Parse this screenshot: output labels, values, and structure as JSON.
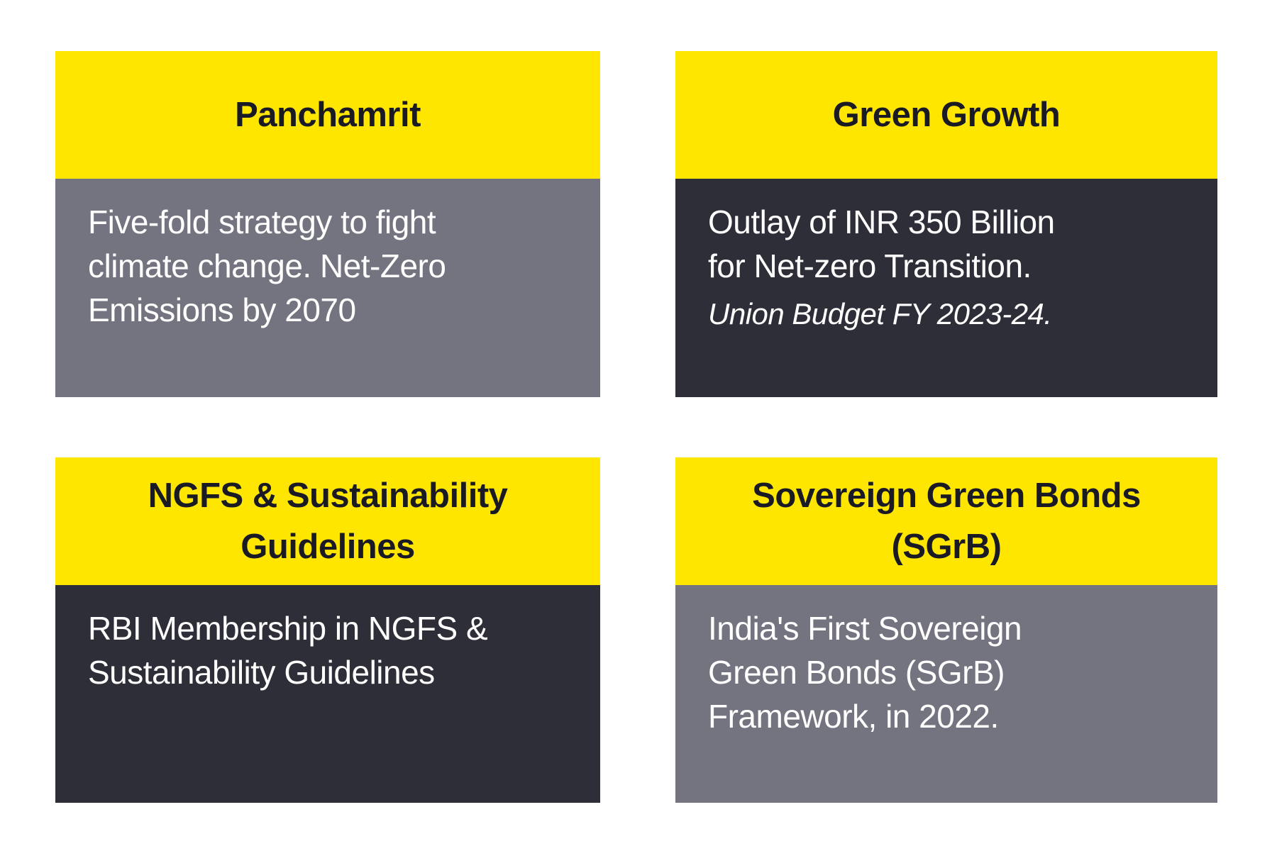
{
  "colors": {
    "header_background": "#ffe600",
    "header_text": "#1a1a24",
    "body_gray": "#747480",
    "body_dark": "#2e2e38",
    "body_text": "#ffffff",
    "page_background": "#ffffff"
  },
  "cards": [
    {
      "title": "Panchamrit",
      "body_variant": "gray",
      "body_text": "Five-fold strategy to fight\nclimate change. Net-Zero\nEmissions by 2070",
      "note": ""
    },
    {
      "title": "Green Growth",
      "body_variant": "dark",
      "body_text": "Outlay of INR 350 Billion\nfor Net-zero Transition.",
      "note": "Union Budget FY 2023-24."
    },
    {
      "title": "NGFS & Sustainability\nGuidelines",
      "body_variant": "dark",
      "body_text": "RBI Membership in NGFS &\nSustainability Guidelines",
      "note": ""
    },
    {
      "title": "Sovereign Green Bonds\n(SGrB)",
      "body_variant": "gray",
      "body_text": "India's First Sovereign\nGreen Bonds (SGrB)\nFramework, in 2022.",
      "note": ""
    }
  ]
}
